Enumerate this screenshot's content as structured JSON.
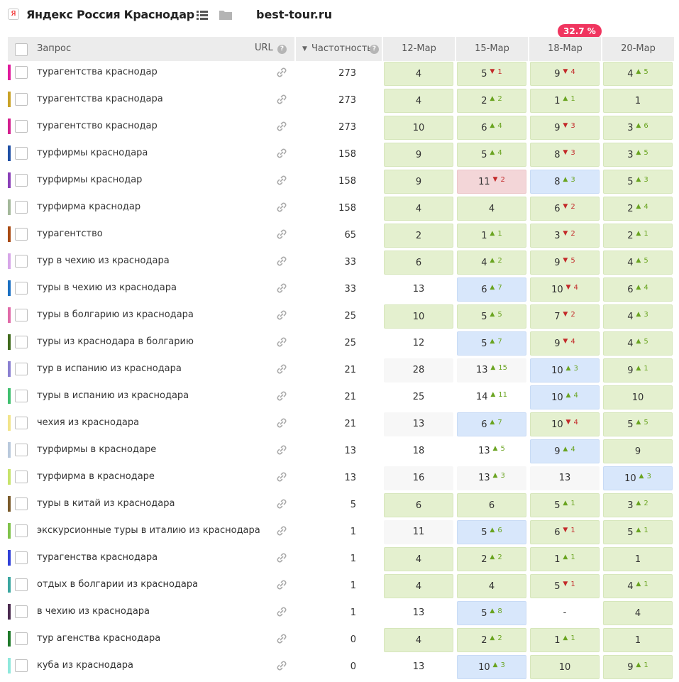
{
  "header": {
    "search_engine_icon": "yandex-icon",
    "region": "Яндекс Россия Краснодар",
    "site": "best-tour.ru",
    "badge": "32.7 %"
  },
  "columns": {
    "query": "Запрос",
    "url": "URL",
    "frequency": "Частотность",
    "dates": [
      "12-Мар",
      "15-Мар",
      "18-Мар",
      "20-Мар"
    ]
  },
  "colors": {
    "cell_green": "#e4f0cf",
    "cell_blue": "#d8e7fb",
    "cell_red": "#f3d6d8",
    "up": "#6aa421",
    "down": "#c32a2a",
    "badge": "#f0355f"
  },
  "rows": [
    {
      "query": "турагентства краснодар",
      "color": "#e0199c",
      "freq": "273",
      "cells": [
        {
          "v": "4",
          "s": "green"
        },
        {
          "v": "5",
          "d": "down",
          "c": "1",
          "s": "green"
        },
        {
          "v": "9",
          "d": "down",
          "c": "4",
          "s": "green"
        },
        {
          "v": "4",
          "d": "up",
          "c": "5",
          "s": "green"
        }
      ]
    },
    {
      "query": "турагентства краснодара",
      "color": "#c9a227",
      "freq": "273",
      "cells": [
        {
          "v": "4",
          "s": "green"
        },
        {
          "v": "2",
          "d": "up",
          "c": "2",
          "s": "green"
        },
        {
          "v": "1",
          "d": "up",
          "c": "1",
          "s": "green"
        },
        {
          "v": "1",
          "s": "green"
        }
      ]
    },
    {
      "query": "турагентство краснодар",
      "color": "#d31f8e",
      "freq": "273",
      "cells": [
        {
          "v": "10",
          "s": "green"
        },
        {
          "v": "6",
          "d": "up",
          "c": "4",
          "s": "green"
        },
        {
          "v": "9",
          "d": "down",
          "c": "3",
          "s": "green"
        },
        {
          "v": "3",
          "d": "up",
          "c": "6",
          "s": "green"
        }
      ]
    },
    {
      "query": "турфирмы краснодара",
      "color": "#1f4fa5",
      "freq": "158",
      "cells": [
        {
          "v": "9",
          "s": "green"
        },
        {
          "v": "5",
          "d": "up",
          "c": "4",
          "s": "green"
        },
        {
          "v": "8",
          "d": "down",
          "c": "3",
          "s": "green"
        },
        {
          "v": "3",
          "d": "up",
          "c": "5",
          "s": "green"
        }
      ]
    },
    {
      "query": "турфирмы краснодар",
      "color": "#8a3fb8",
      "freq": "158",
      "cells": [
        {
          "v": "9",
          "s": "green"
        },
        {
          "v": "11",
          "d": "down",
          "c": "2",
          "s": "red"
        },
        {
          "v": "8",
          "d": "up",
          "c": "3",
          "s": "blue"
        },
        {
          "v": "5",
          "d": "up",
          "c": "3",
          "s": "green"
        }
      ]
    },
    {
      "query": "турфирма краснодар",
      "color": "#a3b89a",
      "freq": "158",
      "cells": [
        {
          "v": "4",
          "s": "green"
        },
        {
          "v": "4",
          "s": "green"
        },
        {
          "v": "6",
          "d": "down",
          "c": "2",
          "s": "green"
        },
        {
          "v": "2",
          "d": "up",
          "c": "4",
          "s": "green"
        }
      ]
    },
    {
      "query": "турагентство",
      "color": "#a94a12",
      "freq": "65",
      "cells": [
        {
          "v": "2",
          "s": "green"
        },
        {
          "v": "1",
          "d": "up",
          "c": "1",
          "s": "green"
        },
        {
          "v": "3",
          "d": "down",
          "c": "2",
          "s": "green"
        },
        {
          "v": "2",
          "d": "up",
          "c": "1",
          "s": "green"
        }
      ]
    },
    {
      "query": "тур в чехию из краснодара",
      "color": "#d7a6e8",
      "freq": "33",
      "cells": [
        {
          "v": "6",
          "s": "green"
        },
        {
          "v": "4",
          "d": "up",
          "c": "2",
          "s": "green"
        },
        {
          "v": "9",
          "d": "down",
          "c": "5",
          "s": "green"
        },
        {
          "v": "4",
          "d": "up",
          "c": "5",
          "s": "green"
        }
      ]
    },
    {
      "query": "туры в чехию из краснодара",
      "color": "#1a6fc2",
      "freq": "33",
      "cells": [
        {
          "v": "13",
          "s": "plain"
        },
        {
          "v": "6",
          "d": "up",
          "c": "7",
          "s": "blue"
        },
        {
          "v": "10",
          "d": "down",
          "c": "4",
          "s": "green"
        },
        {
          "v": "6",
          "d": "up",
          "c": "4",
          "s": "green"
        }
      ]
    },
    {
      "query": "туры в болгарию из краснодара",
      "color": "#e06aa8",
      "freq": "25",
      "cells": [
        {
          "v": "10",
          "s": "green"
        },
        {
          "v": "5",
          "d": "up",
          "c": "5",
          "s": "green"
        },
        {
          "v": "7",
          "d": "down",
          "c": "2",
          "s": "green"
        },
        {
          "v": "4",
          "d": "up",
          "c": "3",
          "s": "green"
        }
      ]
    },
    {
      "query": "туры из краснодара в болгарию",
      "color": "#3f6a1c",
      "freq": "25",
      "cells": [
        {
          "v": "12",
          "s": "plain"
        },
        {
          "v": "5",
          "d": "up",
          "c": "7",
          "s": "blue"
        },
        {
          "v": "9",
          "d": "down",
          "c": "4",
          "s": "green"
        },
        {
          "v": "4",
          "d": "up",
          "c": "5",
          "s": "green"
        }
      ]
    },
    {
      "query": "тур в испанию из краснодара",
      "color": "#8a7fd1",
      "freq": "21",
      "cells": [
        {
          "v": "28",
          "s": "plain"
        },
        {
          "v": "13",
          "d": "up",
          "c": "15",
          "s": "plain"
        },
        {
          "v": "10",
          "d": "up",
          "c": "3",
          "s": "blue"
        },
        {
          "v": "9",
          "d": "up",
          "c": "1",
          "s": "green"
        }
      ]
    },
    {
      "query": "туры в испанию из краснодара",
      "color": "#3fbf6e",
      "freq": "21",
      "cells": [
        {
          "v": "25",
          "s": "plain"
        },
        {
          "v": "14",
          "d": "up",
          "c": "11",
          "s": "plain"
        },
        {
          "v": "10",
          "d": "up",
          "c": "4",
          "s": "blue"
        },
        {
          "v": "10",
          "s": "green"
        }
      ]
    },
    {
      "query": "чехия из краснодара",
      "color": "#f2e48a",
      "freq": "21",
      "cells": [
        {
          "v": "13",
          "s": "plain"
        },
        {
          "v": "6",
          "d": "up",
          "c": "7",
          "s": "blue"
        },
        {
          "v": "10",
          "d": "down",
          "c": "4",
          "s": "green"
        },
        {
          "v": "5",
          "d": "up",
          "c": "5",
          "s": "green"
        }
      ]
    },
    {
      "query": "турфирмы в краснодаре",
      "color": "#b9c9dc",
      "freq": "13",
      "cells": [
        {
          "v": "18",
          "s": "plain"
        },
        {
          "v": "13",
          "d": "up",
          "c": "5",
          "s": "plain"
        },
        {
          "v": "9",
          "d": "up",
          "c": "4",
          "s": "blue"
        },
        {
          "v": "9",
          "s": "green"
        }
      ]
    },
    {
      "query": "турфирма в краснодаре",
      "color": "#c7e36a",
      "freq": "13",
      "cells": [
        {
          "v": "16",
          "s": "plain"
        },
        {
          "v": "13",
          "d": "up",
          "c": "3",
          "s": "plain"
        },
        {
          "v": "13",
          "s": "plain"
        },
        {
          "v": "10",
          "d": "up",
          "c": "3",
          "s": "blue"
        }
      ]
    },
    {
      "query": "туры в китай из краснодара",
      "color": "#7a5a2a",
      "freq": "5",
      "cells": [
        {
          "v": "6",
          "s": "green"
        },
        {
          "v": "6",
          "s": "green"
        },
        {
          "v": "5",
          "d": "up",
          "c": "1",
          "s": "green"
        },
        {
          "v": "3",
          "d": "up",
          "c": "2",
          "s": "green"
        }
      ]
    },
    {
      "query": "экскурсионные туры в италию из краснодара",
      "color": "#7fc24a",
      "freq": "1",
      "cells": [
        {
          "v": "11",
          "s": "plain"
        },
        {
          "v": "5",
          "d": "up",
          "c": "6",
          "s": "blue"
        },
        {
          "v": "6",
          "d": "down",
          "c": "1",
          "s": "green"
        },
        {
          "v": "5",
          "d": "up",
          "c": "1",
          "s": "green"
        }
      ]
    },
    {
      "query": "турагенства краснодара",
      "color": "#2f3fd8",
      "freq": "1",
      "cells": [
        {
          "v": "4",
          "s": "green"
        },
        {
          "v": "2",
          "d": "up",
          "c": "2",
          "s": "green"
        },
        {
          "v": "1",
          "d": "up",
          "c": "1",
          "s": "green"
        },
        {
          "v": "1",
          "s": "green"
        }
      ]
    },
    {
      "query": "отдых в болгарии из краснодара",
      "color": "#3aa6a0",
      "freq": "1",
      "cells": [
        {
          "v": "4",
          "s": "green"
        },
        {
          "v": "4",
          "s": "green"
        },
        {
          "v": "5",
          "d": "down",
          "c": "1",
          "s": "green"
        },
        {
          "v": "4",
          "d": "up",
          "c": "1",
          "s": "green"
        }
      ]
    },
    {
      "query": "в чехию из краснодара",
      "color": "#4a2a4f",
      "freq": "1",
      "cells": [
        {
          "v": "13",
          "s": "plain"
        },
        {
          "v": "5",
          "d": "up",
          "c": "8",
          "s": "blue"
        },
        {
          "v": "-",
          "s": "plain"
        },
        {
          "v": "4",
          "s": "green"
        }
      ]
    },
    {
      "query": "тур агенства краснодара",
      "color": "#1f7a2a",
      "freq": "0",
      "cells": [
        {
          "v": "4",
          "s": "green"
        },
        {
          "v": "2",
          "d": "up",
          "c": "2",
          "s": "green"
        },
        {
          "v": "1",
          "d": "up",
          "c": "1",
          "s": "green"
        },
        {
          "v": "1",
          "s": "green"
        }
      ]
    },
    {
      "query": "куба из краснодара",
      "color": "#8ee8dc",
      "freq": "0",
      "cells": [
        {
          "v": "13",
          "s": "plain"
        },
        {
          "v": "10",
          "d": "up",
          "c": "3",
          "s": "blue"
        },
        {
          "v": "10",
          "s": "green"
        },
        {
          "v": "9",
          "d": "up",
          "c": "1",
          "s": "green"
        }
      ]
    }
  ]
}
